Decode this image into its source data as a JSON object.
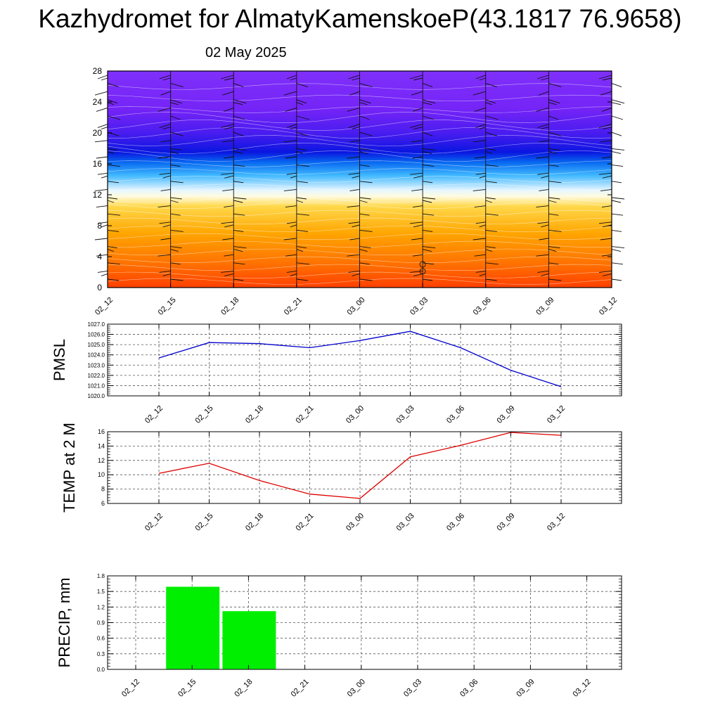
{
  "header": {
    "title": "Kazhydromet for AlmatyKamenskoeP(43.1817 76.9658)",
    "date": "02 May 2025"
  },
  "colors": {
    "pmsl": "#0000cc",
    "temp": "#dd0000",
    "precip": "#00ee00",
    "grid": "#555555"
  },
  "chart_data": [
    {
      "type": "heatmap",
      "x_ticks": [
        "02_12",
        "02_15",
        "02_18",
        "02_21",
        "03_00",
        "03_03",
        "03_06",
        "03_09",
        "03_12"
      ],
      "y_ticks": [
        "0",
        "4",
        "8",
        "12",
        "16",
        "20",
        "24",
        "28"
      ],
      "ylim": [
        0,
        28
      ],
      "color_profile": [
        {
          "level": 0,
          "color": "#ff4000"
        },
        {
          "level": 3,
          "color": "#ff7000"
        },
        {
          "level": 7,
          "color": "#ffa500"
        },
        {
          "level": 10.5,
          "color": "#ffd84a"
        },
        {
          "level": 11.8,
          "color": "#fffbe0"
        },
        {
          "level": 12.6,
          "color": "#e6f6ff"
        },
        {
          "level": 14.5,
          "color": "#40b8ff"
        },
        {
          "level": 16.2,
          "color": "#0868f0"
        },
        {
          "level": 17.5,
          "color": "#0a16e0"
        },
        {
          "level": 20,
          "color": "#4a1cf0"
        },
        {
          "level": 23,
          "color": "#7424f6"
        },
        {
          "level": 28,
          "color": "#8030fa"
        }
      ],
      "overlay": "wind barbs"
    },
    {
      "type": "line",
      "ylabel": "PMSL",
      "x": [
        "02_12",
        "02_15",
        "02_18",
        "02_21",
        "03_00",
        "03_03",
        "03_06",
        "03_09",
        "03_12"
      ],
      "y_ticks": [
        "1020.0",
        "1021.0",
        "1022.0",
        "1023.0",
        "1024.0",
        "1025.0",
        "1026.0",
        "1027.0"
      ],
      "ylim": [
        1020,
        1027
      ],
      "grid": true,
      "values": [
        1023.7,
        1025.2,
        1025.1,
        1024.7,
        1025.4,
        1026.3,
        1024.7,
        1022.5,
        1020.9
      ]
    },
    {
      "type": "line",
      "ylabel": "TEMP at 2 M",
      "x": [
        "02_12",
        "02_15",
        "02_18",
        "02_21",
        "03_00",
        "03_03",
        "03_06",
        "03_09",
        "03_12"
      ],
      "y_ticks": [
        "6",
        "8",
        "10",
        "12",
        "14",
        "16"
      ],
      "ylim": [
        6,
        16
      ],
      "grid": true,
      "values": [
        10.2,
        11.6,
        9.2,
        7.3,
        6.7,
        12.5,
        14.1,
        15.9,
        15.5
      ]
    },
    {
      "type": "bar",
      "ylabel": "PRECIP, mm",
      "categories": [
        "02_12",
        "02_15",
        "02_18",
        "02_21",
        "03_00",
        "03_03",
        "03_06",
        "03_09",
        "03_12"
      ],
      "y_ticks": [
        "0.0",
        "0.3",
        "0.6",
        "0.9",
        "1.2",
        "1.5",
        "1.8"
      ],
      "ylim": [
        0,
        1.8
      ],
      "grid": true,
      "values": [
        0,
        1.59,
        1.12,
        0,
        0,
        0,
        0,
        0,
        0
      ]
    }
  ]
}
